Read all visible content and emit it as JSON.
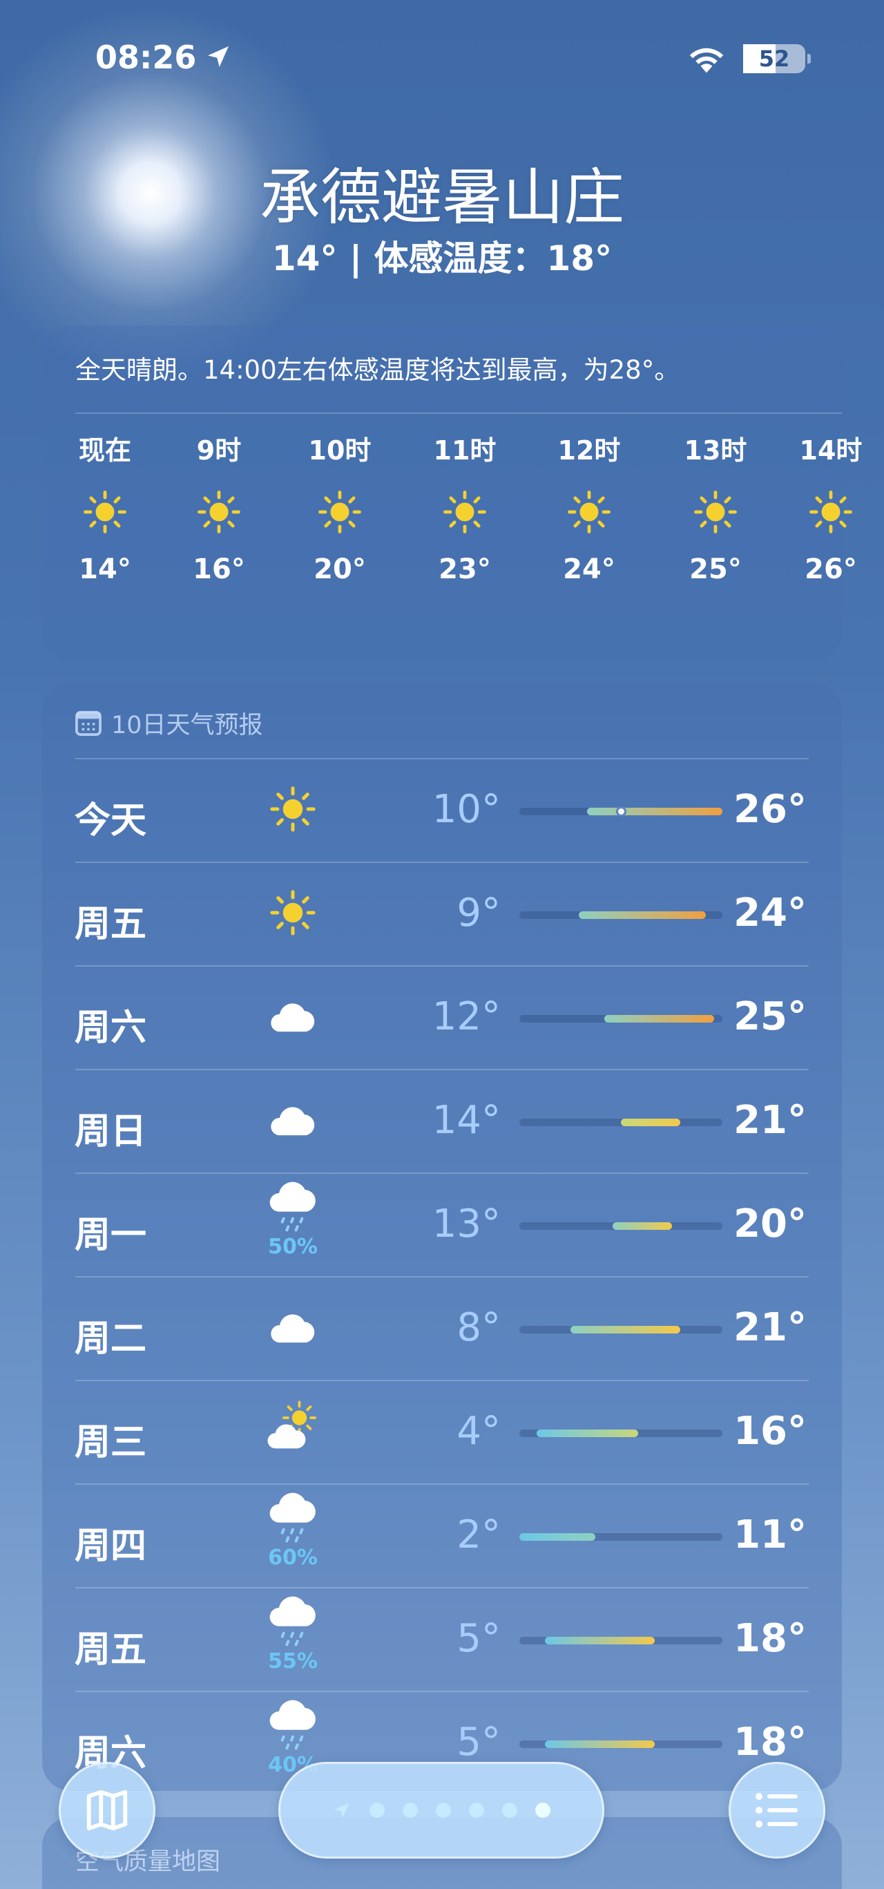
{
  "status": {
    "time": "08:26",
    "battery": "52",
    "battery_level": 52
  },
  "header": {
    "location": "承德避暑山庄",
    "subtitle": "14° | 体感温度：18°"
  },
  "hourly": {
    "summary": "全天晴朗。14:00左右体感温度将达到最高，为28°。",
    "hours": [
      {
        "label": "现在",
        "icon": "sun-icon",
        "temp": "14°"
      },
      {
        "label": "9时",
        "icon": "sun-icon",
        "temp": "16°"
      },
      {
        "label": "10时",
        "icon": "sun-icon",
        "temp": "20°"
      },
      {
        "label": "11时",
        "icon": "sun-icon",
        "temp": "23°"
      },
      {
        "label": "12时",
        "icon": "sun-icon",
        "temp": "24°"
      },
      {
        "label": "13时",
        "icon": "sun-icon",
        "temp": "25°"
      },
      {
        "label": "14时",
        "icon": "sun-icon",
        "temp": "26°"
      }
    ]
  },
  "forecast": {
    "title": "10日天气预报",
    "range_min": 2,
    "range_max": 26,
    "current_temp": 14,
    "days": [
      {
        "day": "今天",
        "icon": "sun-icon",
        "low": 10,
        "high": 26,
        "low_label": "10°",
        "high_label": "26°"
      },
      {
        "day": "周五",
        "icon": "sun-icon",
        "low": 9,
        "high": 24,
        "low_label": "9°",
        "high_label": "24°"
      },
      {
        "day": "周六",
        "icon": "cloud-icon",
        "low": 12,
        "high": 25,
        "low_label": "12°",
        "high_label": "25°"
      },
      {
        "day": "周日",
        "icon": "cloud-icon",
        "low": 14,
        "high": 21,
        "low_label": "14°",
        "high_label": "21°"
      },
      {
        "day": "周一",
        "icon": "rain-icon",
        "pop": "50%",
        "low": 13,
        "high": 20,
        "low_label": "13°",
        "high_label": "20°"
      },
      {
        "day": "周二",
        "icon": "cloud-icon",
        "low": 8,
        "high": 21,
        "low_label": "8°",
        "high_label": "21°"
      },
      {
        "day": "周三",
        "icon": "partly-cloudy-icon",
        "low": 4,
        "high": 16,
        "low_label": "4°",
        "high_label": "16°"
      },
      {
        "day": "周四",
        "icon": "rain-icon",
        "pop": "60%",
        "low": 2,
        "high": 11,
        "low_label": "2°",
        "high_label": "11°"
      },
      {
        "day": "周五",
        "icon": "rain-icon",
        "pop": "55%",
        "low": 5,
        "high": 18,
        "low_label": "5°",
        "high_label": "18°"
      },
      {
        "day": "周六",
        "icon": "rain-icon",
        "pop": "40%",
        "low": 5,
        "high": 18,
        "low_label": "5°",
        "high_label": "18°"
      }
    ]
  },
  "next_card": {
    "title": "空气质量地图"
  },
  "pager": {
    "pages": 6,
    "active": 6
  },
  "colors": {
    "sun": "#f5d130",
    "rain_pct": "#6cc7f5",
    "low_temp": "#a9cdfb"
  }
}
